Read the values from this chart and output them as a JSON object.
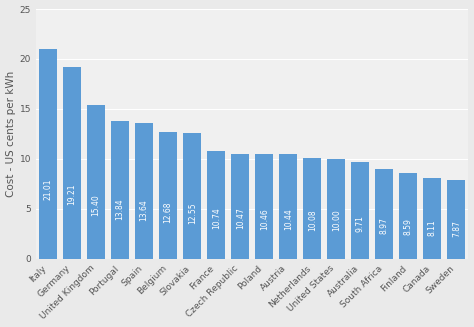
{
  "categories": [
    "Italy",
    "Germany",
    "United Kingdom",
    "Portugal",
    "Spain",
    "Belgium",
    "Slovakia",
    "France",
    "Czech Republic",
    "Poland",
    "Austria",
    "Netherlands",
    "United States",
    "Australia",
    "South Africa",
    "Finland",
    "Canada",
    "Sweden"
  ],
  "values": [
    21.01,
    19.21,
    15.4,
    13.84,
    13.64,
    12.68,
    12.55,
    10.74,
    10.47,
    10.46,
    10.44,
    10.08,
    10.0,
    9.71,
    8.97,
    8.59,
    8.11,
    7.87
  ],
  "bar_color": "#5b9bd5",
  "ylabel": "Cost - US cents per kWh",
  "ylim": [
    0,
    25
  ],
  "yticks": [
    0,
    5,
    10,
    15,
    20,
    25
  ],
  "fig_background": "#eaeaea",
  "plot_background": "#f0f0f0",
  "grid_color": "#ffffff",
  "label_color": "#ffffff",
  "label_fontsize": 5.5,
  "ylabel_fontsize": 7.5,
  "tick_fontsize": 6.5,
  "bar_width": 0.75
}
